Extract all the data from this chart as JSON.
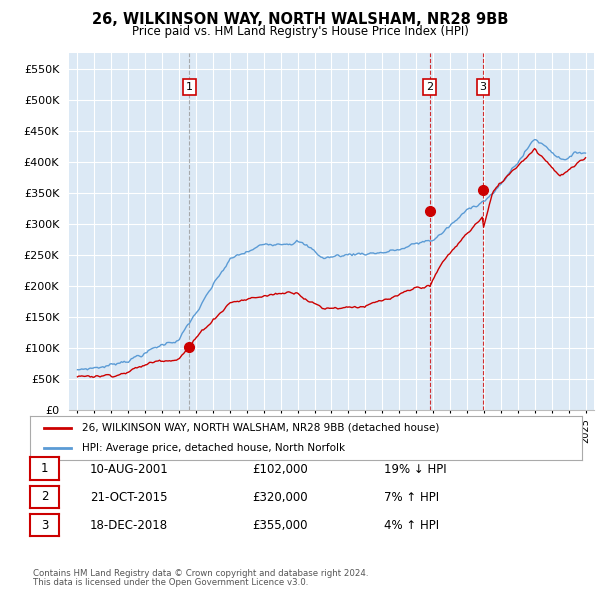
{
  "title": "26, WILKINSON WAY, NORTH WALSHAM, NR28 9BB",
  "subtitle": "Price paid vs. HM Land Registry's House Price Index (HPI)",
  "legend_line1": "26, WILKINSON WAY, NORTH WALSHAM, NR28 9BB (detached house)",
  "legend_line2": "HPI: Average price, detached house, North Norfolk",
  "transactions": [
    {
      "num": 1,
      "date": "10-AUG-2001",
      "price": 102000,
      "pct": "19%",
      "dir": "↓",
      "x_year": 2001.6,
      "linestyle": "dashed_gray"
    },
    {
      "num": 2,
      "date": "21-OCT-2015",
      "price": 320000,
      "pct": "7%",
      "dir": "↑",
      "x_year": 2015.8,
      "linestyle": "dashed_red"
    },
    {
      "num": 3,
      "date": "18-DEC-2018",
      "price": 355000,
      "pct": "4%",
      "dir": "↑",
      "x_year": 2018.95,
      "linestyle": "dashed_red"
    }
  ],
  "footnote1": "Contains HM Land Registry data © Crown copyright and database right 2024.",
  "footnote2": "This data is licensed under the Open Government Licence v3.0.",
  "ylim": [
    0,
    575000
  ],
  "yticks": [
    0,
    50000,
    100000,
    150000,
    200000,
    250000,
    300000,
    350000,
    400000,
    450000,
    500000,
    550000
  ],
  "xlim_start": 1994.5,
  "xlim_end": 2025.5,
  "hpi_color": "#5b9bd5",
  "price_color": "#cc0000",
  "chart_bg": "#dce9f5",
  "background_color": "#ffffff",
  "grid_color": "#ffffff"
}
